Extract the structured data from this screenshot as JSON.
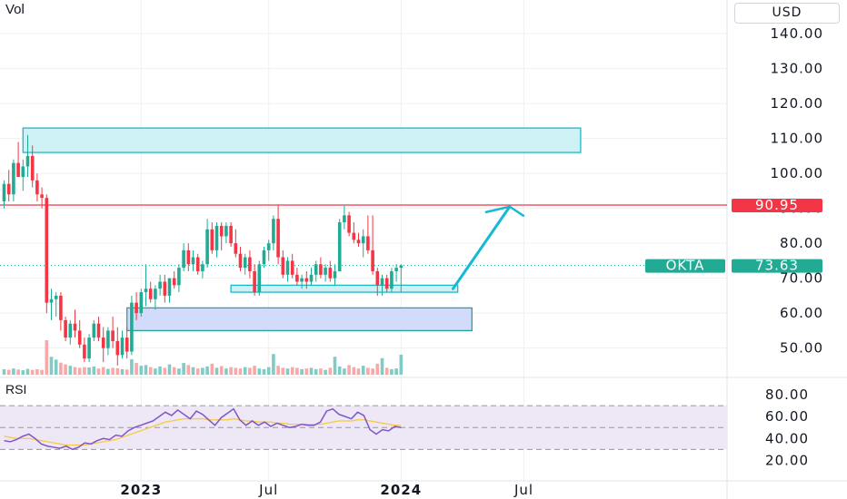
{
  "header": {
    "volume_label": "Vol",
    "currency": "USD"
  },
  "rsi": {
    "label": "RSI",
    "levels": [
      30,
      50,
      70
    ],
    "ylim": [
      15,
      85
    ],
    "ticks": [
      "80.00",
      "60.00",
      "40.00",
      "20.00"
    ],
    "tick_values": [
      80,
      60,
      40,
      20
    ],
    "rsi_line": [
      38,
      37,
      39,
      42,
      44,
      40,
      35,
      33,
      32,
      31,
      33,
      30,
      32,
      36,
      35,
      38,
      40,
      39,
      43,
      42,
      47,
      50,
      52,
      54,
      56,
      60,
      64,
      61,
      66,
      62,
      58,
      65,
      62,
      57,
      52,
      59,
      63,
      67,
      57,
      52,
      56,
      52,
      55,
      51,
      54,
      52,
      50,
      51,
      53,
      52,
      52,
      55,
      65,
      67,
      62,
      60,
      58,
      64,
      61,
      48,
      44,
      48,
      47,
      51,
      50
    ],
    "ma_line": [
      42,
      41,
      40,
      40,
      40,
      39,
      38,
      37,
      36,
      35,
      34,
      34,
      34,
      34,
      35,
      36,
      37,
      38,
      39,
      41,
      43,
      45,
      47,
      49,
      51,
      53,
      55,
      56,
      57,
      58,
      58,
      58,
      58,
      57,
      57,
      57,
      57,
      58,
      57,
      56,
      56,
      55,
      55,
      55,
      54,
      54,
      53,
      53,
      53,
      53,
      53,
      53,
      54,
      55,
      56,
      56,
      56,
      57,
      57,
      56,
      55,
      54,
      53,
      52,
      52
    ],
    "colors": {
      "rsi": "#7e57c2",
      "ma": "#f7c948",
      "band": "#ede7f6"
    }
  },
  "chart_data": {
    "type": "candlestick",
    "symbol": "OKTA",
    "currency": "USD",
    "ylim": [
      40,
      146
    ],
    "y_ticks": [
      "140.00",
      "130.00",
      "120.00",
      "110.00",
      "100.00",
      "90.00",
      "80.00",
      "70.00",
      "60.00",
      "50.00"
    ],
    "y_tick_values": [
      140,
      130,
      120,
      110,
      100,
      90,
      80,
      70,
      60,
      50
    ],
    "x_labels": [
      "2023",
      "Jul",
      "2024",
      "Jul"
    ],
    "x_label_bold": [
      true,
      false,
      true,
      false
    ],
    "x_label_week_index": [
      29,
      56,
      84,
      110
    ],
    "candles": [
      {
        "o": 92,
        "h": 98,
        "l": 90,
        "c": 97
      },
      {
        "o": 97,
        "h": 101,
        "l": 92,
        "c": 94
      },
      {
        "o": 94,
        "h": 104,
        "l": 92,
        "c": 103
      },
      {
        "o": 103,
        "h": 109,
        "l": 100,
        "c": 99
      },
      {
        "o": 99,
        "h": 104,
        "l": 95,
        "c": 102
      },
      {
        "o": 102,
        "h": 111,
        "l": 99,
        "c": 105
      },
      {
        "o": 105,
        "h": 108,
        "l": 96,
        "c": 98
      },
      {
        "o": 98,
        "h": 100,
        "l": 92,
        "c": 94
      },
      {
        "o": 94,
        "h": 96,
        "l": 90,
        "c": 93
      },
      {
        "o": 93,
        "h": 94,
        "l": 60,
        "c": 63
      },
      {
        "o": 63,
        "h": 67,
        "l": 58,
        "c": 64
      },
      {
        "o": 64,
        "h": 66,
        "l": 59,
        "c": 65
      },
      {
        "o": 65,
        "h": 66,
        "l": 55,
        "c": 58
      },
      {
        "o": 58,
        "h": 59,
        "l": 52,
        "c": 53
      },
      {
        "o": 53,
        "h": 58,
        "l": 51,
        "c": 57
      },
      {
        "o": 57,
        "h": 61,
        "l": 53,
        "c": 55
      },
      {
        "o": 55,
        "h": 58,
        "l": 50,
        "c": 51
      },
      {
        "o": 51,
        "h": 53,
        "l": 46,
        "c": 47
      },
      {
        "o": 47,
        "h": 54,
        "l": 46,
        "c": 53
      },
      {
        "o": 53,
        "h": 58,
        "l": 52,
        "c": 57
      },
      {
        "o": 57,
        "h": 59,
        "l": 52,
        "c": 53
      },
      {
        "o": 53,
        "h": 56,
        "l": 46,
        "c": 50
      },
      {
        "o": 50,
        "h": 56,
        "l": 48,
        "c": 55
      },
      {
        "o": 55,
        "h": 59,
        "l": 50,
        "c": 52
      },
      {
        "o": 52,
        "h": 56,
        "l": 45,
        "c": 48
      },
      {
        "o": 48,
        "h": 55,
        "l": 47,
        "c": 53
      },
      {
        "o": 53,
        "h": 56,
        "l": 47,
        "c": 49
      },
      {
        "o": 49,
        "h": 65,
        "l": 48,
        "c": 63
      },
      {
        "o": 63,
        "h": 66,
        "l": 58,
        "c": 60
      },
      {
        "o": 60,
        "h": 67,
        "l": 59,
        "c": 66
      },
      {
        "o": 66,
        "h": 74,
        "l": 62,
        "c": 67
      },
      {
        "o": 67,
        "h": 69,
        "l": 63,
        "c": 64
      },
      {
        "o": 64,
        "h": 68,
        "l": 61,
        "c": 67
      },
      {
        "o": 67,
        "h": 71,
        "l": 65,
        "c": 69
      },
      {
        "o": 69,
        "h": 71,
        "l": 63,
        "c": 65
      },
      {
        "o": 65,
        "h": 70,
        "l": 63,
        "c": 70
      },
      {
        "o": 70,
        "h": 72,
        "l": 67,
        "c": 68
      },
      {
        "o": 68,
        "h": 74,
        "l": 66,
        "c": 73
      },
      {
        "o": 73,
        "h": 80,
        "l": 72,
        "c": 78
      },
      {
        "o": 78,
        "h": 80,
        "l": 72,
        "c": 74
      },
      {
        "o": 74,
        "h": 78,
        "l": 72,
        "c": 76
      },
      {
        "o": 76,
        "h": 77,
        "l": 71,
        "c": 72
      },
      {
        "o": 72,
        "h": 75,
        "l": 70,
        "c": 74
      },
      {
        "o": 74,
        "h": 87,
        "l": 73,
        "c": 84
      },
      {
        "o": 84,
        "h": 86,
        "l": 77,
        "c": 78
      },
      {
        "o": 78,
        "h": 86,
        "l": 76,
        "c": 85
      },
      {
        "o": 85,
        "h": 86,
        "l": 78,
        "c": 82
      },
      {
        "o": 82,
        "h": 86,
        "l": 80,
        "c": 85
      },
      {
        "o": 85,
        "h": 86,
        "l": 79,
        "c": 80
      },
      {
        "o": 80,
        "h": 84,
        "l": 76,
        "c": 77
      },
      {
        "o": 77,
        "h": 79,
        "l": 72,
        "c": 73
      },
      {
        "o": 73,
        "h": 77,
        "l": 71,
        "c": 76
      },
      {
        "o": 76,
        "h": 78,
        "l": 70,
        "c": 72
      },
      {
        "o": 72,
        "h": 74,
        "l": 65,
        "c": 66
      },
      {
        "o": 66,
        "h": 75,
        "l": 65,
        "c": 74
      },
      {
        "o": 74,
        "h": 79,
        "l": 73,
        "c": 78
      },
      {
        "o": 78,
        "h": 81,
        "l": 75,
        "c": 80
      },
      {
        "o": 80,
        "h": 88,
        "l": 78,
        "c": 87
      },
      {
        "o": 87,
        "h": 91,
        "l": 74,
        "c": 76
      },
      {
        "o": 76,
        "h": 78,
        "l": 70,
        "c": 71
      },
      {
        "o": 71,
        "h": 76,
        "l": 69,
        "c": 75
      },
      {
        "o": 75,
        "h": 77,
        "l": 70,
        "c": 71
      },
      {
        "o": 71,
        "h": 73,
        "l": 68,
        "c": 69
      },
      {
        "o": 69,
        "h": 71,
        "l": 67,
        "c": 70
      },
      {
        "o": 70,
        "h": 72,
        "l": 67,
        "c": 69
      },
      {
        "o": 69,
        "h": 73,
        "l": 68,
        "c": 71
      },
      {
        "o": 71,
        "h": 75,
        "l": 69,
        "c": 74
      },
      {
        "o": 74,
        "h": 76,
        "l": 70,
        "c": 71
      },
      {
        "o": 71,
        "h": 74,
        "l": 69,
        "c": 73
      },
      {
        "o": 73,
        "h": 75,
        "l": 69,
        "c": 70
      },
      {
        "o": 70,
        "h": 74,
        "l": 68,
        "c": 72
      },
      {
        "o": 72,
        "h": 87,
        "l": 72,
        "c": 86
      },
      {
        "o": 86,
        "h": 91,
        "l": 84,
        "c": 88
      },
      {
        "o": 88,
        "h": 89,
        "l": 82,
        "c": 83
      },
      {
        "o": 83,
        "h": 86,
        "l": 80,
        "c": 81
      },
      {
        "o": 81,
        "h": 83,
        "l": 79,
        "c": 80
      },
      {
        "o": 80,
        "h": 84,
        "l": 76,
        "c": 82
      },
      {
        "o": 82,
        "h": 88,
        "l": 77,
        "c": 78
      },
      {
        "o": 78,
        "h": 88,
        "l": 71,
        "c": 72
      },
      {
        "o": 72,
        "h": 73,
        "l": 65,
        "c": 68
      },
      {
        "o": 68,
        "h": 71,
        "l": 65,
        "c": 70
      },
      {
        "o": 70,
        "h": 71,
        "l": 66,
        "c": 67
      },
      {
        "o": 67,
        "h": 73,
        "l": 66,
        "c": 72
      },
      {
        "o": 72,
        "h": 74,
        "l": 69,
        "c": 73
      },
      {
        "o": 73,
        "h": 74,
        "l": 66,
        "c": 73.63
      }
    ],
    "volume": [
      16,
      14,
      18,
      15,
      13,
      17,
      14,
      16,
      14,
      100,
      52,
      44,
      35,
      30,
      26,
      22,
      20,
      22,
      21,
      24,
      18,
      22,
      17,
      20,
      19,
      16,
      15,
      45,
      34,
      26,
      28,
      22,
      18,
      24,
      20,
      30,
      22,
      18,
      34,
      28,
      22,
      18,
      20,
      24,
      32,
      20,
      25,
      18,
      22,
      20,
      18,
      22,
      20,
      26,
      18,
      16,
      22,
      60,
      26,
      20,
      18,
      22,
      20,
      16,
      18,
      20,
      16,
      18,
      14,
      20,
      52,
      24,
      18,
      28,
      22,
      18,
      26,
      20,
      18,
      32,
      48,
      20,
      16,
      18,
      58
    ],
    "resistance": 90.95,
    "zones": [
      {
        "from_week": 4,
        "to_week": 122,
        "low": 106,
        "high": 113
      },
      {
        "from_week": 48,
        "to_week": 96,
        "low": 66,
        "high": 68
      },
      {
        "from_week": 26,
        "to_week": 99,
        "low": 55,
        "high": 61.5
      }
    ],
    "projection": {
      "from_week": 95,
      "from_value": 67,
      "to_week": 107,
      "to_value": 90.5
    },
    "last_price": 73.63,
    "price_tag": {
      "symbol": "OKTA",
      "value": "73.63"
    },
    "resistance_tag": "90.95",
    "colors": {
      "up": "#22ab94",
      "down": "#f23645",
      "vol_up": "#80cbc4",
      "vol_down": "#f7a9a9",
      "zone_cyan_fill": "#cdf1f4",
      "zone_cyan_stroke": "#1fb8c7",
      "zone_blue_fill": "#d3dbfb",
      "zone_blue_stroke": "#26a69a",
      "projection": "#17b8d2",
      "resistance": "#f23645",
      "grid": "#eef0f3"
    }
  }
}
